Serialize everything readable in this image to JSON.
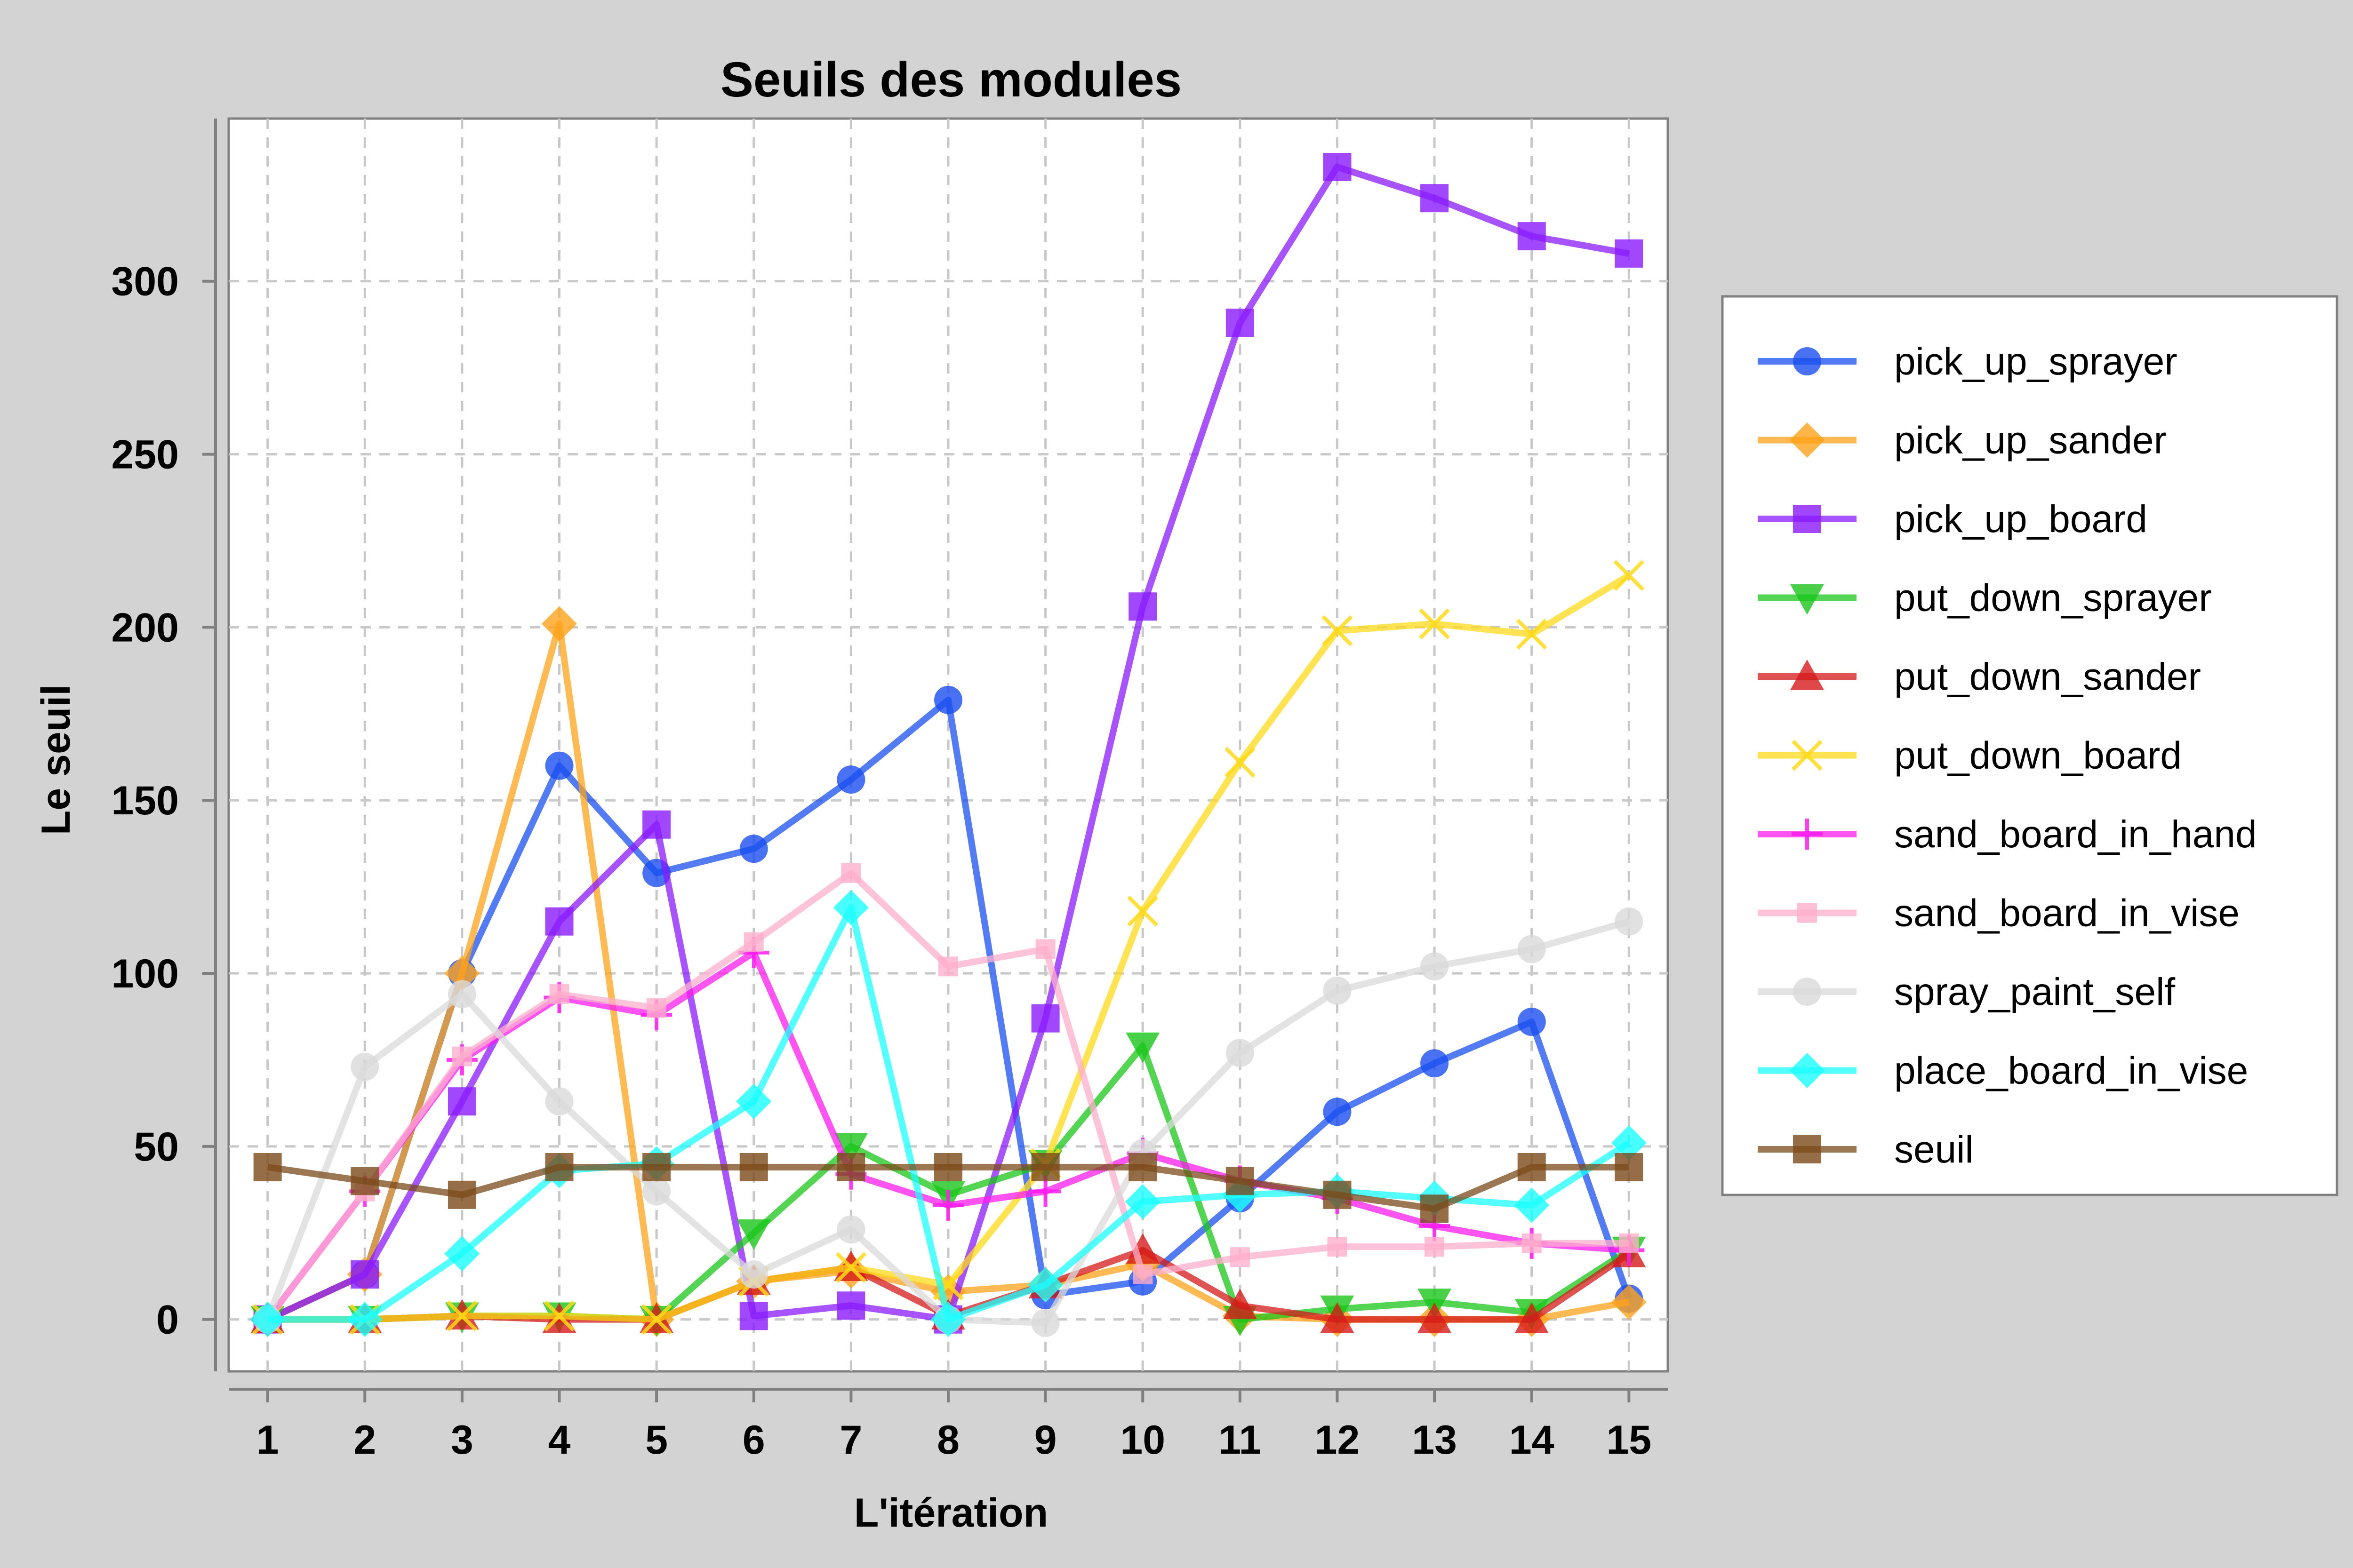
{
  "chart_data": {
    "type": "line",
    "title": "Seuils des modules",
    "xlabel": "L'itération",
    "ylabel": "Le seuil",
    "x": [
      1,
      2,
      3,
      4,
      5,
      6,
      7,
      8,
      9,
      10,
      11,
      12,
      13,
      14,
      15
    ],
    "xlim": [
      0.6,
      15.4
    ],
    "ylim": [
      -15,
      347
    ],
    "yticks": [
      0,
      50,
      100,
      150,
      200,
      250,
      300
    ],
    "grid": true,
    "legend_position": "right",
    "series": [
      {
        "name": "pick_up_sprayer",
        "color": "#1a4ff0",
        "marker": "circle",
        "values": [
          0,
          13,
          100,
          160,
          129,
          136,
          156,
          179,
          7,
          11,
          35,
          60,
          74,
          86,
          6
        ]
      },
      {
        "name": "pick_up_sander",
        "color": "#ffa31a",
        "marker": "diamond",
        "values": [
          0,
          13,
          100,
          201,
          0,
          11,
          14,
          8,
          10,
          16,
          1,
          0,
          0,
          0,
          5
        ]
      },
      {
        "name": "pick_up_board",
        "color": "#8a1aff",
        "marker": "square",
        "values": [
          0,
          13,
          63,
          115,
          143,
          1,
          4,
          0,
          87,
          206,
          288,
          333,
          324,
          313,
          308
        ]
      },
      {
        "name": "put_down_sprayer",
        "color": "#1ac61a",
        "marker": "triangle-down",
        "values": [
          0,
          0,
          1,
          1,
          0,
          25,
          50,
          36,
          45,
          79,
          0,
          3,
          5,
          2,
          20
        ]
      },
      {
        "name": "put_down_sander",
        "color": "#d61a1a",
        "marker": "triangle-up",
        "values": [
          0,
          0,
          1,
          0,
          0,
          11,
          15,
          1,
          10,
          20,
          4,
          0,
          0,
          0,
          19
        ]
      },
      {
        "name": "put_down_board",
        "color": "#ffd91a",
        "marker": "x",
        "values": [
          0,
          0,
          1,
          1,
          0,
          11,
          15,
          10,
          45,
          118,
          161,
          199,
          201,
          198,
          215
        ]
      },
      {
        "name": "sand_board_in_hand",
        "color": "#ff1aee",
        "marker": "plus",
        "values": [
          0,
          37,
          75,
          93,
          88,
          106,
          42,
          33,
          37,
          48,
          40,
          35,
          27,
          22,
          20
        ]
      },
      {
        "name": "sand_board_in_vise",
        "color": "#ffafcc",
        "marker": "small-square",
        "values": [
          0,
          37,
          76,
          94,
          90,
          109,
          129,
          102,
          107,
          13,
          18,
          21,
          21,
          22,
          22
        ]
      },
      {
        "name": "spray_paint_self",
        "color": "#d9d9d9",
        "marker": "circle",
        "values": [
          0,
          73,
          94,
          63,
          37,
          13,
          26,
          0,
          -1,
          48,
          77,
          95,
          102,
          107,
          115
        ]
      },
      {
        "name": "place_board_in_vise",
        "color": "#1affff",
        "marker": "diamond",
        "values": [
          0,
          0,
          19,
          43,
          45,
          63,
          119,
          0,
          10,
          34,
          36,
          37,
          35,
          33,
          51
        ]
      },
      {
        "name": "seuil",
        "color": "#7a4a1a",
        "marker": "square",
        "values": [
          44,
          40,
          36,
          44,
          44,
          44,
          44,
          44,
          44,
          44,
          40,
          36,
          32,
          44,
          44
        ]
      }
    ]
  }
}
